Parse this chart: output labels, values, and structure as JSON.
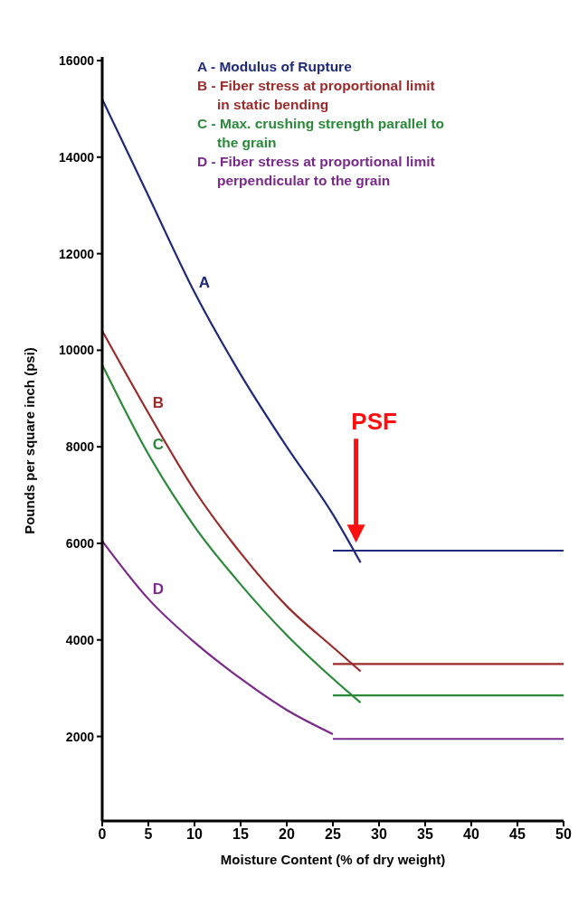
{
  "chart_data": {
    "type": "line",
    "xlabel": "Moisture Content (% of dry weight)",
    "ylabel": "Pounds per square inch (psi)",
    "xlim": [
      0,
      50
    ],
    "xticks": [
      0,
      5,
      10,
      15,
      20,
      25,
      30,
      35,
      40,
      45,
      50
    ],
    "ylim": [
      250,
      16000
    ],
    "yticks": [
      2000,
      4000,
      6000,
      8000,
      10000,
      12000,
      14000,
      16000
    ],
    "grid": false,
    "legend": "top right",
    "marker": "none",
    "line_style": "solid",
    "series": [
      {
        "name": "A - Modulus of Rupture",
        "color": "#1f2a7a",
        "x": [
          0,
          5,
          10,
          15,
          20,
          25,
          28
        ],
        "values": [
          15200,
          13200,
          11200,
          9500,
          8000,
          6600,
          5600
        ]
      },
      {
        "color": "#1f2a7a",
        "x": [
          25,
          50
        ],
        "values": [
          5850,
          5850
        ]
      },
      {
        "name": "B - Fiber stress at proportional limit in static bending",
        "color": "#9b2a2a",
        "x": [
          0,
          5,
          10,
          15,
          20,
          25,
          28
        ],
        "values": [
          10400,
          8700,
          7100,
          5800,
          4700,
          3850,
          3350
        ]
      },
      {
        "color": "#9b2a2a",
        "x": [
          25,
          50
        ],
        "values": [
          3500,
          3500
        ]
      },
      {
        "name": "C - Max. crushing strength parallel to the grain",
        "color": "#2a8a3a",
        "x": [
          0,
          5,
          10,
          15,
          20,
          25,
          28
        ],
        "values": [
          9700,
          7850,
          6350,
          5150,
          4100,
          3200,
          2700
        ]
      },
      {
        "color": "#2a8a3a",
        "x": [
          25,
          50
        ],
        "values": [
          2850,
          2850
        ]
      },
      {
        "name": "D - Fiber stress at proportional limit perpendicular to the grain",
        "color": "#7a2a8a",
        "x": [
          0,
          5,
          10,
          15,
          20,
          25
        ],
        "values": [
          6050,
          4850,
          3950,
          3200,
          2550,
          2050
        ]
      },
      {
        "color": "#7a2a8a",
        "x": [
          25,
          50
        ],
        "values": [
          1950,
          1950
        ]
      }
    ],
    "annotations": [
      "A",
      "B",
      "C",
      "D",
      "PSF"
    ]
  }
}
